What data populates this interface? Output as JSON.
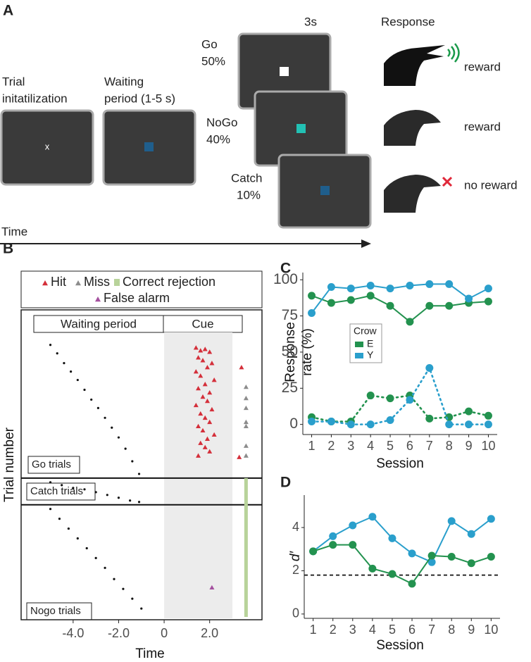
{
  "panel_a": {
    "label": "A",
    "init": [
      "Trial",
      "initatilization"
    ],
    "waiting": [
      "Waiting",
      "period (1-5 s)"
    ],
    "fixation": "x",
    "duration": "3s",
    "response": "Response",
    "go": {
      "name": "Go",
      "pct": "50%",
      "outcome": "reward"
    },
    "nogo": {
      "name": "NoGo",
      "pct": "40%",
      "outcome": "reward"
    },
    "catch": {
      "name": "Catch",
      "pct": "10%",
      "outcome": "no reward"
    },
    "time": "Time"
  },
  "chart_data": [
    {
      "panel": "B",
      "type": "scatter",
      "xlabel": "Time",
      "ylabel": "Trial number",
      "legend_position": "top",
      "xlim": [
        -6.1,
        4.3
      ],
      "xticks": [
        {
          "value": -4,
          "label": "-4.0"
        },
        {
          "value": -2,
          "label": "-2.0"
        },
        0,
        {
          "value": 2,
          "label": "2.0"
        }
      ],
      "ylim": [
        220,
        0
      ],
      "cue_span": [
        0,
        3
      ],
      "period_labels": [
        "Waiting period",
        "Cue"
      ],
      "sections": [
        "Go trials",
        "Catch trials",
        "Nogo trials"
      ],
      "dividers": [
        120,
        139
      ],
      "series": [
        {
          "color": "#111111",
          "marker": "dot",
          "x": [
            -5,
            -4.7,
            -4.4,
            -4.1,
            -3.8,
            -3.5,
            -3.2,
            -2.9,
            -2.6,
            -2.3,
            -2.0,
            -1.7,
            -1.4,
            -1.1,
            -5,
            -4.5,
            -4,
            -3.5,
            -3,
            -2.5,
            -2,
            -1.5,
            -1.1,
            -5,
            -4.6,
            -4.2,
            -3.8,
            -3.4,
            -3.0,
            -2.6,
            -2.2,
            -1.8,
            -1.4,
            -1.0
          ],
          "y": [
            25,
            31,
            38,
            44,
            50,
            57,
            64,
            70,
            77,
            84,
            91,
            99,
            108,
            117,
            123,
            125,
            127,
            128,
            130,
            132,
            134,
            136,
            137,
            142,
            149,
            156,
            163,
            170,
            177,
            184,
            192,
            199,
            206,
            213
          ]
        },
        {
          "name": "Hit",
          "color": "#d42f3a",
          "marker": "triangle",
          "x": [
            1.4,
            1.6,
            1.8,
            2.0,
            1.5,
            1.7,
            2.1,
            1.9,
            1.4,
            1.6,
            2.2,
            1.8,
            1.5,
            2.0,
            1.7,
            1.9,
            1.4,
            2.1,
            1.6,
            1.8,
            2.0,
            1.5,
            1.7,
            2.2,
            1.9,
            1.6,
            1.8,
            2.0,
            1.5,
            3.4,
            3.3
          ],
          "y": [
            27,
            29,
            28,
            30,
            34,
            36,
            38,
            41,
            44,
            47,
            50,
            53,
            56,
            59,
            62,
            65,
            68,
            71,
            74,
            77,
            80,
            83,
            86,
            89,
            92,
            95,
            98,
            101,
            104,
            41,
            105
          ]
        },
        {
          "name": "Miss",
          "color": "#8c8c8c",
          "marker": "triangle",
          "x": [
            3.6,
            3.6,
            3.6,
            3.6,
            3.6,
            3.6,
            3.6
          ],
          "y": [
            55,
            63,
            70,
            80,
            83,
            97,
            104
          ]
        },
        {
          "name": "Correct rejection",
          "color": "#b8d39a",
          "marker": "bar",
          "x": [
            3.6,
            3.6
          ],
          "y": [
            120,
            219
          ]
        },
        {
          "name": "False alarm",
          "color": "#a4509f",
          "marker": "triangle",
          "x": [
            2.1
          ],
          "y": [
            198
          ]
        }
      ]
    },
    {
      "panel": "C",
      "type": "line",
      "xlabel": "Session",
      "ylabel": [
        "Response",
        "rate (%)"
      ],
      "legend_title": "Crow",
      "xlim": [
        0.55,
        10.45
      ],
      "xticks": [
        1,
        2,
        3,
        4,
        5,
        6,
        7,
        8,
        9,
        10
      ],
      "ylim": [
        -7,
        105
      ],
      "yticks": [
        0,
        25,
        50,
        75,
        100
      ],
      "x": [
        1,
        2,
        3,
        4,
        5,
        6,
        7,
        8,
        9,
        10
      ],
      "series": [
        {
          "name": "E",
          "color": "#23924f",
          "values": [
            89,
            84,
            86,
            89,
            82,
            71,
            82,
            82,
            84,
            85
          ],
          "dotted_values": [
            5,
            2,
            2,
            20,
            18,
            20,
            4,
            5,
            9,
            6
          ]
        },
        {
          "name": "Y",
          "color": "#2a9fcc",
          "values": [
            77,
            95,
            94,
            96,
            94,
            96,
            97,
            97,
            87,
            94
          ],
          "dotted_values": [
            2,
            2,
            0,
            0,
            3,
            17,
            39,
            0,
            0,
            0
          ]
        }
      ]
    },
    {
      "panel": "D",
      "type": "line",
      "xlabel": "Session",
      "ylabel": "d′",
      "xlim": [
        0.55,
        10.45
      ],
      "xticks": [
        1,
        2,
        3,
        4,
        5,
        6,
        7,
        8,
        9,
        10
      ],
      "ylim": [
        -0.2,
        5.5
      ],
      "yticks": [
        0,
        2,
        4
      ],
      "hline": 1.8,
      "x": [
        1,
        2,
        3,
        4,
        5,
        6,
        7,
        8,
        9,
        10
      ],
      "series": [
        {
          "color": "#2a9fcc",
          "values": [
            2.9,
            3.6,
            4.1,
            4.5,
            3.5,
            2.8,
            2.4,
            4.3,
            3.7,
            4.4
          ]
        },
        {
          "color": "#23924f",
          "values": [
            2.9,
            3.2,
            3.2,
            2.1,
            1.85,
            1.4,
            2.7,
            2.65,
            2.35,
            2.65
          ]
        }
      ]
    }
  ]
}
